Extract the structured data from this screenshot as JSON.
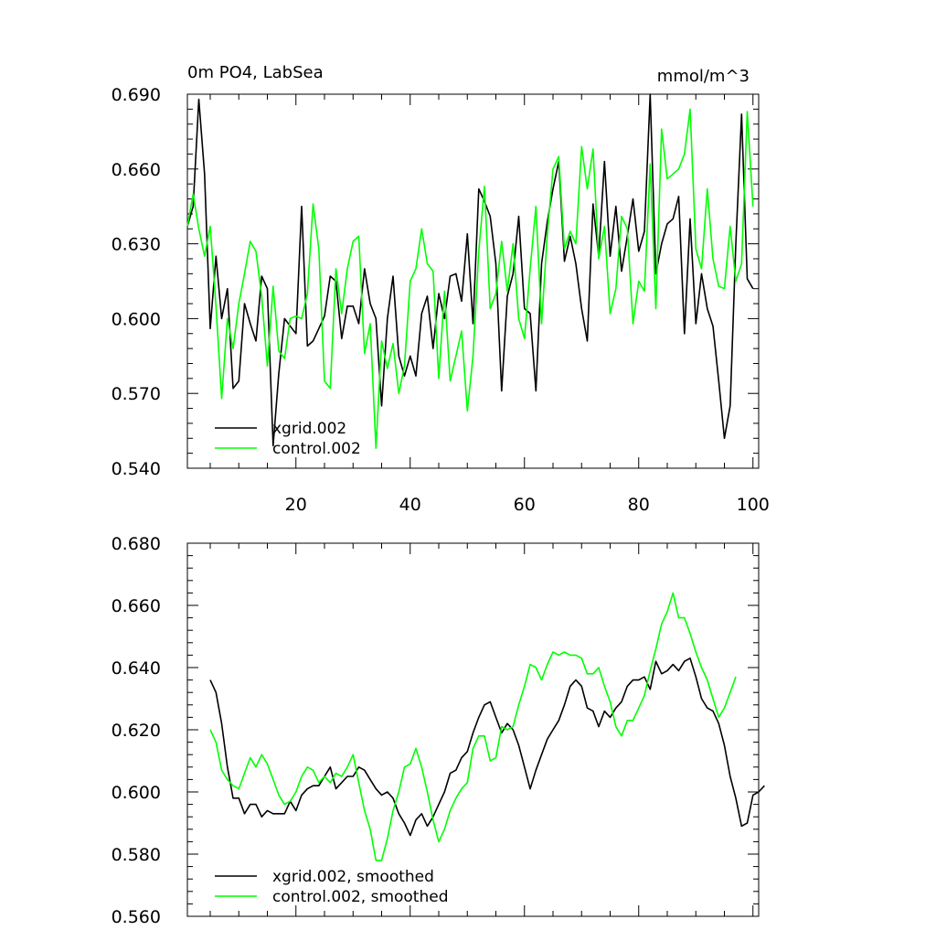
{
  "chart_data": [
    {
      "type": "line",
      "title": "0m PO4, LabSea",
      "units": "mmol/m^3",
      "xlim": [
        1,
        101
      ],
      "ylim": [
        0.54,
        0.69
      ],
      "x_ticks": [
        20,
        40,
        60,
        80,
        100
      ],
      "x_tick_labels": [
        "20",
        "40",
        "60",
        "80",
        "100"
      ],
      "y_ticks": [
        0.54,
        0.57,
        0.6,
        0.63,
        0.66,
        0.69
      ],
      "y_tick_labels": [
        "0.540",
        "0.570",
        "0.600",
        "0.630",
        "0.660",
        "0.690"
      ],
      "legend_position": "bottom-left",
      "series": [
        {
          "name": "xgrid.002",
          "color": "#000000",
          "x_start": 1,
          "values": [
            0.637,
            0.645,
            0.688,
            0.658,
            0.596,
            0.625,
            0.6,
            0.612,
            0.572,
            0.575,
            0.606,
            0.598,
            0.591,
            0.617,
            0.612,
            0.549,
            0.578,
            0.6,
            0.597,
            0.594,
            0.645,
            0.589,
            0.591,
            0.596,
            0.601,
            0.617,
            0.615,
            0.592,
            0.605,
            0.605,
            0.598,
            0.62,
            0.606,
            0.6,
            0.565,
            0.6,
            0.617,
            0.585,
            0.577,
            0.585,
            0.577,
            0.602,
            0.609,
            0.588,
            0.61,
            0.6,
            0.617,
            0.618,
            0.607,
            0.634,
            0.598,
            0.652,
            0.647,
            0.641,
            0.622,
            0.571,
            0.609,
            0.618,
            0.641,
            0.604,
            0.602,
            0.571,
            0.622,
            0.639,
            0.652,
            0.663,
            0.623,
            0.633,
            0.622,
            0.604,
            0.591,
            0.646,
            0.625,
            0.663,
            0.625,
            0.645,
            0.619,
            0.633,
            0.648,
            0.627,
            0.635,
            0.69,
            0.618,
            0.63,
            0.638,
            0.64,
            0.649,
            0.594,
            0.64,
            0.598,
            0.618,
            0.604,
            0.597,
            0.575,
            0.552,
            0.565,
            0.63,
            0.682,
            0.616,
            0.612
          ]
        },
        {
          "name": "control.002",
          "color": "#00ff00",
          "x_start": 1,
          "values": [
            0.637,
            0.65,
            0.636,
            0.625,
            0.637,
            0.605,
            0.568,
            0.6,
            0.588,
            0.606,
            0.618,
            0.631,
            0.627,
            0.609,
            0.581,
            0.613,
            0.587,
            0.584,
            0.6,
            0.601,
            0.6,
            0.61,
            0.646,
            0.628,
            0.575,
            0.572,
            0.62,
            0.602,
            0.62,
            0.631,
            0.633,
            0.586,
            0.598,
            0.548,
            0.591,
            0.58,
            0.59,
            0.57,
            0.581,
            0.615,
            0.62,
            0.636,
            0.622,
            0.619,
            0.576,
            0.611,
            0.575,
            0.585,
            0.595,
            0.563,
            0.585,
            0.627,
            0.653,
            0.604,
            0.61,
            0.631,
            0.611,
            0.63,
            0.6,
            0.592,
            0.62,
            0.645,
            0.598,
            0.634,
            0.66,
            0.665,
            0.628,
            0.635,
            0.63,
            0.669,
            0.652,
            0.668,
            0.624,
            0.637,
            0.602,
            0.612,
            0.641,
            0.636,
            0.598,
            0.615,
            0.611,
            0.662,
            0.604,
            0.676,
            0.656,
            0.658,
            0.66,
            0.666,
            0.684,
            0.628,
            0.62,
            0.652,
            0.624,
            0.613,
            0.612,
            0.637,
            0.615,
            0.622,
            0.683,
            0.645
          ]
        }
      ]
    },
    {
      "type": "line",
      "title": "",
      "xlim": [
        1,
        101
      ],
      "ylim": [
        0.56,
        0.68
      ],
      "x_ticks": [
        20,
        40,
        60,
        80,
        100
      ],
      "x_tick_labels": [],
      "y_ticks": [
        0.56,
        0.58,
        0.6,
        0.62,
        0.64,
        0.66,
        0.68
      ],
      "y_tick_labels": [
        "0.560",
        "0.580",
        "0.600",
        "0.620",
        "0.640",
        "0.660",
        "0.680"
      ],
      "legend_position": "bottom-left",
      "series": [
        {
          "name": "xgrid.002, smoothed",
          "color": "#000000",
          "x_start": 5,
          "values": [
            0.636,
            0.632,
            0.622,
            0.608,
            0.598,
            0.598,
            0.593,
            0.596,
            0.596,
            0.592,
            0.594,
            0.593,
            0.593,
            0.593,
            0.597,
            0.594,
            0.599,
            0.601,
            0.602,
            0.602,
            0.605,
            0.608,
            0.601,
            0.603,
            0.605,
            0.605,
            0.608,
            0.607,
            0.604,
            0.601,
            0.599,
            0.6,
            0.598,
            0.593,
            0.59,
            0.586,
            0.591,
            0.593,
            0.589,
            0.592,
            0.596,
            0.6,
            0.606,
            0.607,
            0.611,
            0.613,
            0.619,
            0.624,
            0.628,
            0.629,
            0.624,
            0.619,
            0.622,
            0.62,
            0.615,
            0.608,
            0.601,
            0.607,
            0.612,
            0.617,
            0.62,
            0.623,
            0.628,
            0.634,
            0.636,
            0.634,
            0.627,
            0.626,
            0.621,
            0.626,
            0.624,
            0.627,
            0.629,
            0.634,
            0.636,
            0.636,
            0.637,
            0.633,
            0.642,
            0.638,
            0.639,
            0.641,
            0.639,
            0.642,
            0.643,
            0.637,
            0.63,
            0.627,
            0.626,
            0.622,
            0.615,
            0.605,
            0.598,
            0.589,
            0.59,
            0.599,
            0.6,
            0.602
          ]
        },
        {
          "name": "control.002, smoothed",
          "color": "#00ff00",
          "x_start": 5,
          "values": [
            0.62,
            0.616,
            0.607,
            0.604,
            0.602,
            0.601,
            0.606,
            0.611,
            0.608,
            0.612,
            0.609,
            0.604,
            0.599,
            0.596,
            0.597,
            0.6,
            0.605,
            0.608,
            0.607,
            0.603,
            0.605,
            0.603,
            0.606,
            0.605,
            0.608,
            0.612,
            0.603,
            0.594,
            0.588,
            0.578,
            0.578,
            0.585,
            0.594,
            0.6,
            0.608,
            0.609,
            0.614,
            0.608,
            0.6,
            0.591,
            0.584,
            0.588,
            0.594,
            0.598,
            0.601,
            0.603,
            0.614,
            0.618,
            0.618,
            0.61,
            0.611,
            0.621,
            0.62,
            0.621,
            0.628,
            0.634,
            0.641,
            0.64,
            0.636,
            0.641,
            0.645,
            0.644,
            0.645,
            0.644,
            0.644,
            0.643,
            0.638,
            0.638,
            0.64,
            0.634,
            0.629,
            0.621,
            0.618,
            0.623,
            0.623,
            0.627,
            0.631,
            0.639,
            0.646,
            0.654,
            0.658,
            0.664,
            0.656,
            0.656,
            0.651,
            0.645,
            0.64,
            0.636,
            0.63,
            0.624,
            0.627,
            0.632,
            0.637
          ]
        }
      ]
    }
  ]
}
